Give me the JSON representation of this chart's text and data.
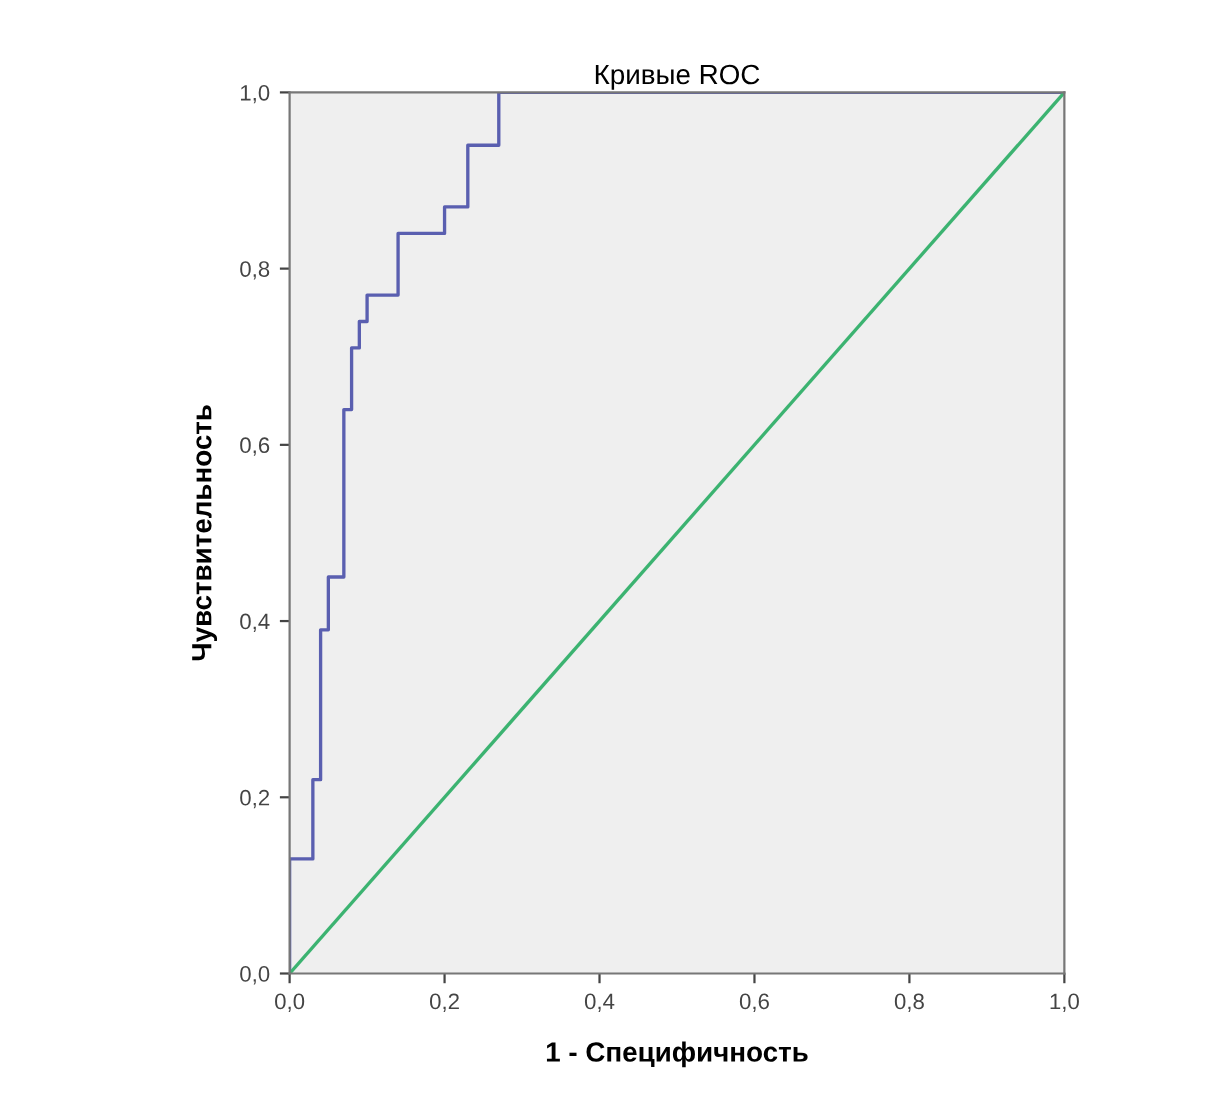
{
  "chart_data": {
    "type": "step",
    "title": "Кривые ROC",
    "xlabel": "1 - Специфичность",
    "ylabel": "Чувствительность",
    "series": [
      {
        "color": "#5a5fb0",
        "x": [
          0,
          0,
          0.03,
          0.04,
          0.05,
          0.07,
          0.08,
          0.09,
          0.1,
          0.14,
          0.2,
          0.23,
          0.27,
          1.0
        ],
        "values": [
          0,
          0.13,
          0.22,
          0.39,
          0.45,
          0.64,
          0.71,
          0.74,
          0.77,
          0.84,
          0.87,
          0.94,
          1.0,
          1.0
        ]
      },
      {
        "type": "line",
        "color": "#3cb371",
        "x": [
          0,
          1
        ],
        "values": [
          0,
          1
        ]
      }
    ],
    "xlim": [
      0,
      1
    ],
    "ylim": [
      0,
      1
    ],
    "xticks": [
      {
        "value": 0,
        "label": "0,0"
      },
      {
        "value": 0.2,
        "label": "0,2"
      },
      {
        "value": 0.4,
        "label": "0,4"
      },
      {
        "value": 0.6,
        "label": "0,6"
      },
      {
        "value": 0.8,
        "label": "0,8"
      },
      {
        "value": 1,
        "label": "1,0"
      }
    ],
    "yticks": [
      {
        "value": 0,
        "label": "0,0"
      },
      {
        "value": 0.2,
        "label": "0,2"
      },
      {
        "value": 0.4,
        "label": "0,4"
      },
      {
        "value": 0.6,
        "label": "0,6"
      },
      {
        "value": 0.8,
        "label": "0,8"
      },
      {
        "value": 1,
        "label": "1,0"
      }
    ],
    "grid": false,
    "legend": false
  }
}
